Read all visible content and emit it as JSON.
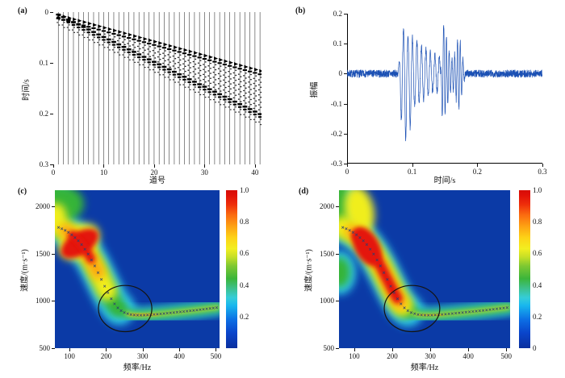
{
  "panels": {
    "a": {
      "tag": "(a)"
    },
    "b": {
      "tag": "(b)"
    },
    "c": {
      "tag": "(c)"
    },
    "d": {
      "tag": "(d)"
    }
  },
  "colors": {
    "background": "#ffffff",
    "waveform_blue": "#1b50b4",
    "heatmap_background_blue": "#0b3aa6",
    "jet_cyan": "#2ec9ee",
    "jet_green": "#35b437",
    "jet_yellow": "#f0ee1e",
    "jet_orange": "#fca50c",
    "jet_red": "#e41408",
    "picked_curve_marker": "#2b3f70",
    "highlight_circle": "#151310",
    "trace_black": "#1a1a1a"
  },
  "chart_data": [
    {
      "panel": "a",
      "type": "seismic-wiggle",
      "xlabel": "道号",
      "ylabel": "时间/s",
      "xlim": [
        0,
        41.3
      ],
      "ylim_top_to_bottom": [
        0,
        0.3
      ],
      "xtick_values": [
        0,
        10,
        20,
        30,
        40
      ],
      "xtick_labels": [
        "0",
        "10",
        "20",
        "30",
        "40"
      ],
      "ytick_values": [
        0,
        0.1,
        0.2,
        0.3
      ],
      "ytick_labels": [
        "0",
        "0.1",
        "0.2",
        "0.3"
      ],
      "n_traces": 41,
      "first_arrival_intercept_s": 0.002,
      "first_arrival_slope_s_per_trace": 0.00275,
      "second_event_slope_s_per_trace": 0.0049
    },
    {
      "panel": "b",
      "type": "line",
      "xlabel": "时间/s",
      "ylabel": "振幅",
      "xlim": [
        0,
        0.3
      ],
      "ylim": [
        -0.3,
        0.2
      ],
      "xtick_values": [
        0,
        0.1,
        0.2,
        0.3
      ],
      "xtick_labels": [
        "0",
        "0.1",
        "0.2",
        "0.3"
      ],
      "ytick_values": [
        0.2,
        0.1,
        0,
        -0.1,
        -0.2,
        -0.3
      ],
      "ytick_labels": [
        "0.2",
        "0.1",
        "0",
        "-0.1",
        "-0.2",
        "-0.3"
      ],
      "noise_amplitude": 0.013,
      "events": [
        {
          "start_s": 0.078,
          "end_s": 0.152,
          "carrier_hz": 145,
          "peak": 0.15,
          "trough": -0.22
        },
        {
          "start_s": 0.143,
          "end_s": 0.182,
          "carrier_hz": 235,
          "peak": 0.13,
          "trough": -0.15
        }
      ]
    },
    {
      "panel": "c",
      "type": "heatmap",
      "xlabel": "频率/Hz",
      "ylabel": "速度/(m·s⁻¹)",
      "xlim": [
        60,
        510
      ],
      "ylim": [
        500,
        2175
      ],
      "xtick_values": [
        100,
        200,
        300,
        400,
        500
      ],
      "xtick_labels": [
        "100",
        "200",
        "300",
        "400",
        "500"
      ],
      "ytick_values": [
        500,
        1000,
        1500,
        2000
      ],
      "ytick_labels": [
        "500",
        "1000",
        "1500",
        "2000"
      ],
      "colormap": "jet",
      "colorbar_range": [
        0,
        1
      ],
      "colorbar_tick_values": [
        1.0,
        0.8,
        0.6,
        0.4,
        0.2
      ],
      "colorbar_tick_labels": [
        "1.0",
        "0.8",
        "0.6",
        "0.4",
        "0.2"
      ],
      "energy_peak": {
        "freq_hz": 130,
        "velocity_mps": 1600,
        "value": 1.0
      },
      "flat_band": {
        "freq_range_hz": [
          230,
          510
        ],
        "velocity_mps": 870,
        "value": 0.55
      },
      "picked_dispersion_curve_hz_mps": [
        [
          70,
          1780
        ],
        [
          80,
          1765
        ],
        [
          90,
          1745
        ],
        [
          100,
          1720
        ],
        [
          110,
          1690
        ],
        [
          120,
          1655
        ],
        [
          130,
          1615
        ],
        [
          150,
          1505
        ],
        [
          170,
          1365
        ],
        [
          190,
          1205
        ],
        [
          200,
          1125
        ],
        [
          210,
          1050
        ],
        [
          220,
          985
        ],
        [
          230,
          935
        ],
        [
          240,
          900
        ],
        [
          250,
          878
        ],
        [
          265,
          858
        ],
        [
          280,
          850
        ],
        [
          300,
          849
        ],
        [
          320,
          854
        ],
        [
          340,
          861
        ],
        [
          360,
          868
        ],
        [
          380,
          876
        ],
        [
          400,
          884
        ],
        [
          420,
          892
        ],
        [
          440,
          901
        ],
        [
          460,
          910
        ],
        [
          480,
          920
        ],
        [
          510,
          934
        ]
      ],
      "highlight_circle": {
        "center_freq_hz": 252,
        "center_velocity_mps": 920,
        "rx_hz": 73,
        "ry_mps": 245
      }
    },
    {
      "panel": "d",
      "type": "heatmap",
      "xlabel": "频率/Hz",
      "ylabel": "速度/(m·s⁻¹)",
      "xlim": [
        60,
        510
      ],
      "ylim": [
        500,
        2175
      ],
      "xtick_values": [
        100,
        200,
        300,
        400,
        500
      ],
      "xtick_labels": [
        "100",
        "200",
        "300",
        "400",
        "500"
      ],
      "ytick_values": [
        500,
        1000,
        1500,
        2000
      ],
      "ytick_labels": [
        "500",
        "1000",
        "1500",
        "2000"
      ],
      "colormap": "jet",
      "colorbar_range": [
        0,
        1
      ],
      "colorbar_tick_values": [
        1.0,
        0.8,
        0.6,
        0.4,
        0.2,
        0
      ],
      "colorbar_tick_labels": [
        "1.0",
        "0.8",
        "0.6",
        "0.4",
        "0.2",
        "0"
      ],
      "energy_peak": {
        "freq_hz": 140,
        "velocity_mps": 1550,
        "value": 1.0
      },
      "energy_ridge": {
        "follows": "dispersion curve",
        "freq_range_hz": [
          105,
          220
        ]
      },
      "flat_band": {
        "freq_range_hz": [
          230,
          510
        ],
        "velocity_mps": 870,
        "value": 0.55
      },
      "picked_dispersion_curve_hz_mps": [
        [
          70,
          1780
        ],
        [
          80,
          1765
        ],
        [
          90,
          1745
        ],
        [
          100,
          1720
        ],
        [
          110,
          1690
        ],
        [
          120,
          1655
        ],
        [
          130,
          1615
        ],
        [
          150,
          1505
        ],
        [
          170,
          1365
        ],
        [
          190,
          1205
        ],
        [
          200,
          1125
        ],
        [
          210,
          1050
        ],
        [
          220,
          985
        ],
        [
          230,
          935
        ],
        [
          240,
          900
        ],
        [
          250,
          878
        ],
        [
          265,
          858
        ],
        [
          280,
          850
        ],
        [
          300,
          849
        ],
        [
          320,
          854
        ],
        [
          340,
          861
        ],
        [
          360,
          868
        ],
        [
          380,
          876
        ],
        [
          400,
          884
        ],
        [
          420,
          892
        ],
        [
          440,
          901
        ],
        [
          460,
          910
        ],
        [
          480,
          920
        ],
        [
          510,
          934
        ]
      ],
      "highlight_circle": {
        "center_freq_hz": 252,
        "center_velocity_mps": 920,
        "rx_hz": 73,
        "ry_mps": 245
      }
    }
  ]
}
